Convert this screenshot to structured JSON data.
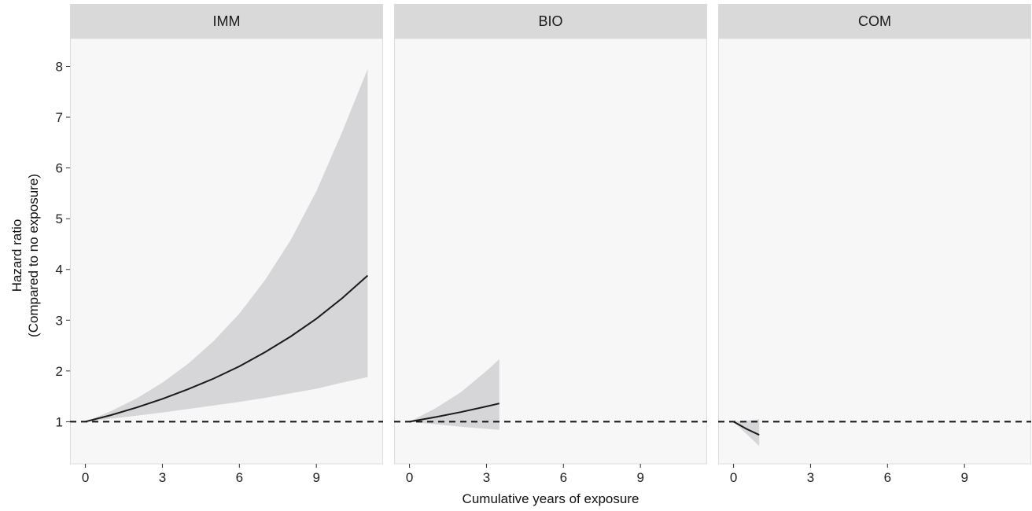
{
  "chart_data": {
    "type": "line",
    "layout": "faceted",
    "xlabel": "Cumulative years of exposure",
    "ylabel": [
      "Hazard ratio",
      "(Compared to no exposure)"
    ],
    "xlim": [
      -0.6,
      11.6
    ],
    "ylim": [
      0.17,
      8.55
    ],
    "xticks": [
      0,
      3,
      6,
      9
    ],
    "yticks": [
      1,
      2,
      3,
      4,
      5,
      6,
      7,
      8
    ],
    "reference_line": {
      "y": 1,
      "style": "dashed"
    },
    "colors": {
      "line": "#1a1a1a",
      "band": "#d6d6d8",
      "panel_bg": "#f7f7f7",
      "strip_bg": "#d9d9d9"
    },
    "panels": [
      {
        "label": "IMM",
        "x": [
          0,
          1,
          2,
          3,
          4,
          5,
          6,
          7,
          8,
          9,
          10,
          11
        ],
        "estimate": [
          1.0,
          1.13,
          1.28,
          1.45,
          1.64,
          1.85,
          2.09,
          2.37,
          2.68,
          3.03,
          3.43,
          3.88
        ],
        "lower": [
          1.0,
          1.06,
          1.12,
          1.18,
          1.25,
          1.32,
          1.39,
          1.47,
          1.56,
          1.65,
          1.77,
          1.88
        ],
        "upper": [
          1.0,
          1.21,
          1.46,
          1.77,
          2.14,
          2.59,
          3.13,
          3.79,
          4.58,
          5.54,
          6.7,
          7.95
        ]
      },
      {
        "label": "BIO",
        "x": [
          0,
          1,
          2,
          3,
          3.5
        ],
        "estimate": [
          1.0,
          1.09,
          1.19,
          1.3,
          1.36
        ],
        "lower": [
          1.0,
          0.95,
          0.9,
          0.86,
          0.84
        ],
        "upper": [
          1.0,
          1.26,
          1.58,
          2.0,
          2.23
        ]
      },
      {
        "label": "COM",
        "x": [
          0,
          0.5,
          1.0
        ],
        "estimate": [
          1.0,
          0.86,
          0.74
        ],
        "lower": [
          1.0,
          0.76,
          0.52
        ],
        "upper": [
          1.0,
          1.02,
          1.05
        ]
      }
    ]
  }
}
